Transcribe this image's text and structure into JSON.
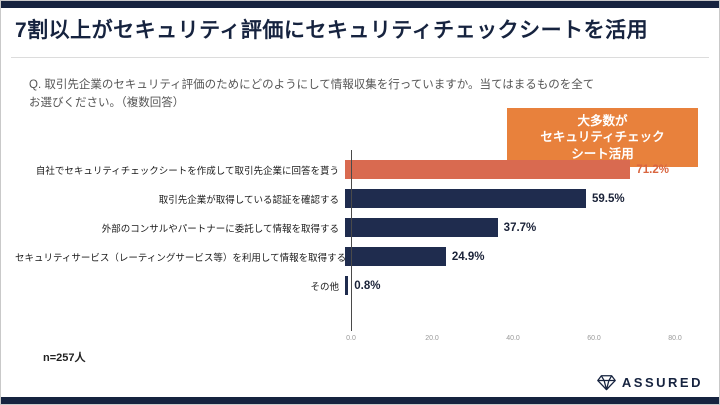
{
  "slide": {
    "title": "7割以上がセキュリティ評価にセキュリティチェックシートを活用",
    "question_lines": [
      "Q. 取引先企業のセキュリティ評価のためにどのようにして情報収集を行っていますか。当てはまるものを全て",
      "お選びください。（複数回答）"
    ],
    "callout_lines": [
      "大多数が",
      "セキュリティチェック",
      "シート活用"
    ],
    "sample_size": "n=257人",
    "logo_text": "ASSURED"
  },
  "colors": {
    "navy": "#16233f",
    "bar_default": "#1f2c4e",
    "bar_highlight": "#d96a50",
    "callout_bg": "#e8813c",
    "value_highlight": "#d9653f"
  },
  "chart_data": {
    "type": "bar",
    "orientation": "horizontal",
    "title": "7割以上がセキュリティ評価にセキュリティチェックシートを活用",
    "categories": [
      "自社でセキュリティチェックシートを作成して取引先企業に回答を貰う",
      "取引先企業が取得している認証を確認する",
      "外部のコンサルやパートナーに委託して情報を取得する",
      "セキュリティサービス（レーティングサービス等）を利用して情報を取得する",
      "その他"
    ],
    "values": [
      71.2,
      59.5,
      37.7,
      24.9,
      0.8
    ],
    "value_labels": [
      "71.2%",
      "59.5%",
      "37.7%",
      "24.9%",
      "0.8%"
    ],
    "highlight_index": 0,
    "xlim": [
      0,
      80
    ],
    "x_ticks": [
      "0.0",
      "20.0",
      "40.0",
      "60.0",
      "80.0"
    ],
    "grid": false,
    "legend": "none"
  }
}
